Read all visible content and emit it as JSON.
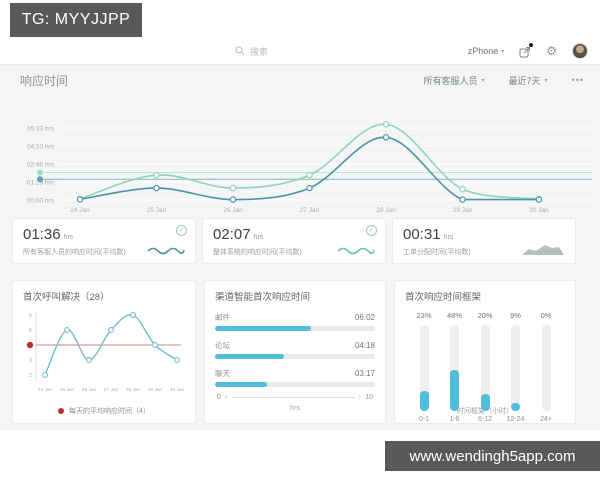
{
  "banners": {
    "tg": "TG: MYYJJPP",
    "site": "www.wendingh5app.com"
  },
  "topbar": {
    "search_placeholder": "搜索",
    "device_label": "zPhone",
    "more_glyph": "•••"
  },
  "header": {
    "title": "响应时间",
    "agent_filter": "所有客服人员",
    "range_filter": "最近7天",
    "caret": "▾"
  },
  "colors": {
    "mint": "#8fd4b8",
    "teal": "#4a94a8",
    "spark_green": "#6fc497",
    "bar_blue": "#4fbeda",
    "red": "#b5302a",
    "gray_spark": "#b9bdbe",
    "banner_bg": "#59595b"
  },
  "stat_cards": [
    {
      "value": "01:36",
      "unit": "hrs",
      "label": "所有客服人员的响应时间(平均数)"
    },
    {
      "value": "02:07",
      "unit": "hrs",
      "label": "整体系统的响应时间(平均数)"
    },
    {
      "value": "00:31",
      "unit": "hrs",
      "label": "工单分配时间(平均数)"
    }
  ],
  "chart_data": [
    {
      "id": "response-time-trend",
      "type": "line",
      "x": [
        "24 Jan",
        "25 Jan",
        "26 Jan",
        "27 Jan",
        "28 Jan",
        "29 Jan",
        "30 Jan"
      ],
      "yticks": [
        {
          "label": "00:00 hrs",
          "minutes": 0
        },
        {
          "label": "01:23 hrs",
          "minutes": 83
        },
        {
          "label": "02:46 hrs",
          "minutes": 166
        },
        {
          "label": "04:10 hrs",
          "minutes": 250
        },
        {
          "label": "05:33 hrs",
          "minutes": 333
        }
      ],
      "ylim_minutes": [
        0,
        360
      ],
      "series": [
        {
          "name": "整体系统",
          "color": "#8fd4b8",
          "values_minutes": [
            5,
            115,
            55,
            115,
            350,
            50,
            5
          ]
        },
        {
          "name": "所有客服人员",
          "color": "#4a94a8",
          "values_minutes": [
            3,
            55,
            2,
            55,
            290,
            2,
            2
          ]
        }
      ],
      "avg_lines": [
        {
          "label": "02:07",
          "minutes": 127,
          "color": "#9ed9c3"
        },
        {
          "label": "01:36",
          "minutes": 96,
          "color": "#5fa3b2"
        }
      ]
    },
    {
      "id": "first-call-resolution",
      "type": "line",
      "title": "首次呼叫解决（28）",
      "x": [
        "24 Jan",
        "25 Jan",
        "26 Jan",
        "27 Jan",
        "28 Jan",
        "29 Jan",
        "30 Jan"
      ],
      "values": [
        2,
        5,
        3,
        5,
        6,
        4,
        3
      ],
      "yticks": [
        2,
        3,
        4,
        5,
        6
      ],
      "line_color": "#74bfcc",
      "ref_line": {
        "value": 4,
        "color": "#b5302a",
        "legend": "每天的平均响应时间（4）"
      }
    },
    {
      "id": "channel-first-response",
      "type": "bar",
      "orientation": "horizontal",
      "title": "渠道智能首次响应时间",
      "categories": [
        "邮件",
        "论坛",
        "聊天"
      ],
      "value_labels": [
        "06:02",
        "04:18",
        "03:17"
      ],
      "values_hours": [
        6.03,
        4.3,
        3.28
      ],
      "xlim": [
        0,
        10
      ],
      "axis_min_label": "0",
      "axis_max_label": "10",
      "xlabel": "hrs"
    },
    {
      "id": "first-response-bracket",
      "type": "bar",
      "orientation": "vertical",
      "title": "首次响应时间框架",
      "categories": [
        "0-1",
        "1-6",
        "6-12",
        "12-24",
        "24+"
      ],
      "values_percent": [
        23,
        48,
        20,
        9,
        0
      ],
      "xlabel": "时间框架（小时）"
    }
  ]
}
